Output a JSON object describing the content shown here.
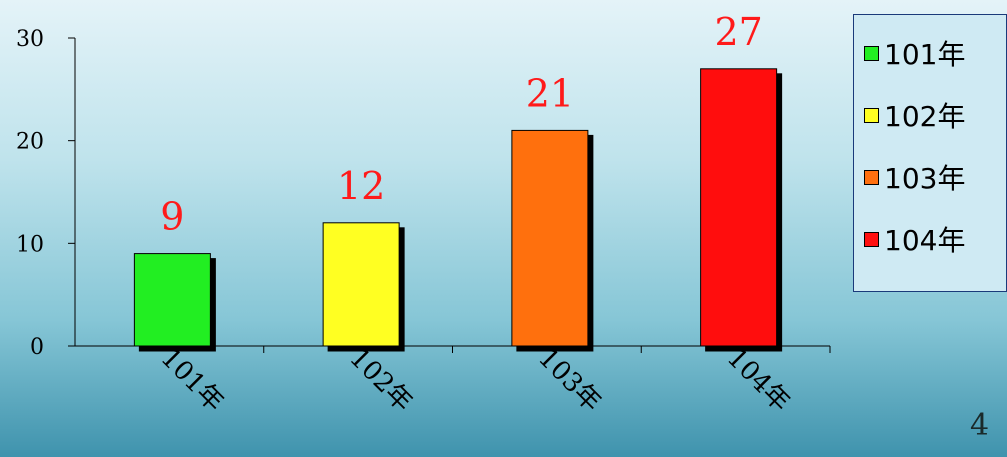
{
  "chart_data": {
    "type": "bar",
    "categories": [
      "101年",
      "102年",
      "103年",
      "104年"
    ],
    "values": [
      9,
      12,
      21,
      27
    ],
    "colors": [
      "#22ee22",
      "#ffff22",
      "#ff7010",
      "#ff1010"
    ],
    "ylim": [
      0,
      30
    ],
    "yticks": [
      "0",
      "10",
      "20",
      "30"
    ],
    "title": "",
    "xlabel": "",
    "ylabel": "",
    "legend": {
      "position": "right",
      "entries": [
        "101年",
        "102年",
        "103年",
        "104年"
      ]
    },
    "data_label_color": "#ff1a1a",
    "grid": false
  },
  "page_number": "4"
}
